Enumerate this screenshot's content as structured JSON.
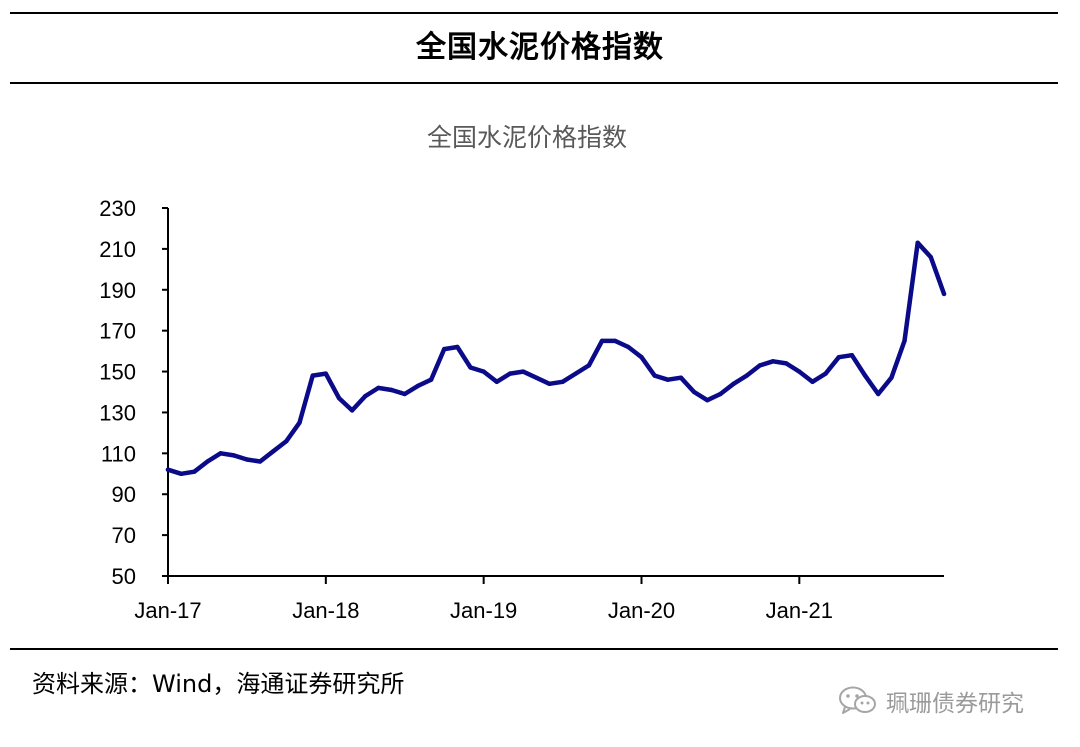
{
  "header": {
    "title": "全国水泥价格指数"
  },
  "source": {
    "text": "资料来源：Wind，海通证券研究所"
  },
  "watermark": {
    "text": "珮珊债券研究",
    "icon": "wechat-icon"
  },
  "colors": {
    "series": "#0b0b8a",
    "axis": "#000000",
    "rule": "#000000"
  },
  "chart_data": {
    "type": "line",
    "title": "全国水泥价格指数",
    "xlabel": "",
    "ylabel": "",
    "ylim": [
      50,
      230
    ],
    "yticks": [
      50,
      70,
      90,
      110,
      130,
      150,
      170,
      190,
      210,
      230
    ],
    "xlim": [
      "2017-01",
      "2021-12"
    ],
    "xticks": [
      "2017-01",
      "2018-01",
      "2019-01",
      "2020-01",
      "2021-01"
    ],
    "xtick_labels": [
      "Jan-17",
      "Jan-18",
      "Jan-19",
      "Jan-20",
      "Jan-21"
    ],
    "grid": false,
    "legend": "none",
    "series": [
      {
        "x": [
          "2017-01",
          "2017-02",
          "2017-03",
          "2017-04",
          "2017-05",
          "2017-06",
          "2017-07",
          "2017-08",
          "2017-09",
          "2017-10",
          "2017-11",
          "2017-12",
          "2018-01",
          "2018-02",
          "2018-03",
          "2018-04",
          "2018-05",
          "2018-06",
          "2018-07",
          "2018-08",
          "2018-09",
          "2018-10",
          "2018-11",
          "2018-12",
          "2019-01",
          "2019-02",
          "2019-03",
          "2019-04",
          "2019-05",
          "2019-06",
          "2019-07",
          "2019-08",
          "2019-09",
          "2019-10",
          "2019-11",
          "2019-12",
          "2020-01",
          "2020-02",
          "2020-03",
          "2020-04",
          "2020-05",
          "2020-06",
          "2020-07",
          "2020-08",
          "2020-09",
          "2020-10",
          "2020-11",
          "2020-12",
          "2021-01",
          "2021-02",
          "2021-03",
          "2021-04",
          "2021-05",
          "2021-06",
          "2021-07",
          "2021-08",
          "2021-09",
          "2021-10",
          "2021-11",
          "2021-12"
        ],
        "values": [
          102,
          100,
          101,
          106,
          110,
          109,
          107,
          106,
          111,
          116,
          125,
          148,
          149,
          137,
          131,
          138,
          142,
          141,
          139,
          143,
          146,
          161,
          162,
          152,
          150,
          145,
          149,
          150,
          147,
          144,
          145,
          149,
          153,
          165,
          165,
          162,
          157,
          148,
          146,
          147,
          140,
          136,
          139,
          144,
          148,
          153,
          155,
          154,
          150,
          145,
          149,
          157,
          158,
          148,
          139,
          147,
          165,
          213,
          206,
          188
        ]
      }
    ]
  }
}
